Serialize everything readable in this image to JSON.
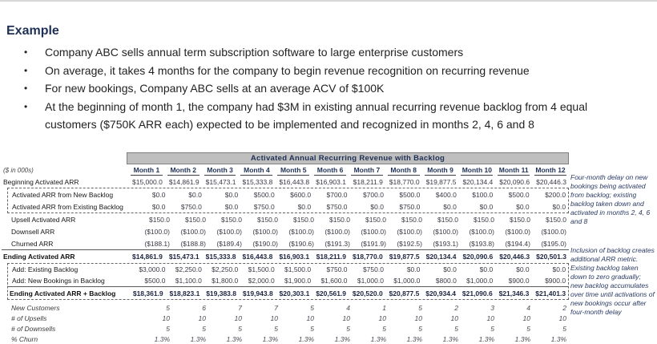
{
  "page": {
    "heading": "Example"
  },
  "bullets": [
    "Company ABC sells annual term subscription software to large enterprise customers",
    "On average, it takes 4 months for the company to begin revenue recognition on recurring revenue",
    "For new bookings, Company ABC sells at an average ACV of $100K",
    "At the beginning of month 1, the company had $3M in existing annual recurring revenue backlog from 4 equal customers ($750K ARR each) expected to be implemented and recognized in months 2, 4, 6 and 8"
  ],
  "table": {
    "units_label": "($ in 000s)",
    "title": "Activated Annual Recurring Revenue with Backlog",
    "columns": [
      "Month 1",
      "Month 2",
      "Month 3",
      "Month 4",
      "Month 5",
      "Month 6",
      "Month 7",
      "Month 8",
      "Month 9",
      "Month 10",
      "Month 11",
      "Month 12"
    ],
    "rows": [
      {
        "label": "Beginning Activated ARR",
        "group": "top",
        "style": "",
        "values": [
          "$15,000.0",
          "$14,861.9",
          "$15,473.1",
          "$15,333.8",
          "$16,443.8",
          "$16,903.1",
          "$18,211.9",
          "$18,770.0",
          "$19,877.5",
          "$20,134.4",
          "$20,090.6",
          "$20,446.3"
        ]
      },
      {
        "label": "Activated ARR from New Backlog",
        "group": "box1",
        "style": "indent",
        "values": [
          "$0.0",
          "$0.0",
          "$0.0",
          "$500.0",
          "$600.0",
          "$700.0",
          "$700.0",
          "$500.0",
          "$400.0",
          "$100.0",
          "$500.0",
          "$200.0"
        ]
      },
      {
        "label": "Activated ARR from Existing Backlog",
        "group": "box1",
        "style": "indent",
        "values": [
          "$0.0",
          "$750.0",
          "$0.0",
          "$750.0",
          "$0.0",
          "$750.0",
          "$0.0",
          "$750.0",
          "$0.0",
          "$0.0",
          "$0.0",
          "$0.0"
        ]
      },
      {
        "label": "Upsell Activated ARR",
        "group": "mid",
        "style": "indent",
        "values": [
          "$150.0",
          "$150.0",
          "$150.0",
          "$150.0",
          "$150.0",
          "$150.0",
          "$150.0",
          "$150.0",
          "$150.0",
          "$150.0",
          "$150.0",
          "$150.0"
        ]
      },
      {
        "label": "Downsell ARR",
        "group": "mid",
        "style": "indent",
        "values": [
          "($100.0)",
          "($100.0)",
          "($100.0)",
          "($100.0)",
          "($100.0)",
          "($100.0)",
          "($100.0)",
          "($100.0)",
          "($100.0)",
          "($100.0)",
          "($100.0)",
          "($100.0)"
        ]
      },
      {
        "label": "Churned ARR",
        "group": "mid",
        "style": "indent",
        "values": [
          "($188.1)",
          "($188.8)",
          "($189.4)",
          "($190.0)",
          "($190.6)",
          "($191.3)",
          "($191.9)",
          "($192.5)",
          "($193.1)",
          "($193.8)",
          "($194.4)",
          "($195.0)"
        ]
      },
      {
        "label": "Ending Activated ARR",
        "group": "mid",
        "style": "total",
        "values": [
          "$14,861.9",
          "$15,473.1",
          "$15,333.8",
          "$16,443.8",
          "$16,903.1",
          "$18,211.9",
          "$18,770.0",
          "$19,877.5",
          "$20,134.4",
          "$20,090.6",
          "$20,446.3",
          "$20,501.3"
        ]
      },
      {
        "label": "Add: Existing Backlog",
        "group": "box2",
        "style": "indent",
        "values": [
          "$3,000.0",
          "$2,250.0",
          "$2,250.0",
          "$1,500.0",
          "$1,500.0",
          "$750.0",
          "$750.0",
          "$0.0",
          "$0.0",
          "$0.0",
          "$0.0",
          "$0.0"
        ]
      },
      {
        "label": "Add: New Bookings in Backlog",
        "group": "box2",
        "style": "indent",
        "values": [
          "$500.0",
          "$1,100.0",
          "$1,800.0",
          "$2,000.0",
          "$1,900.0",
          "$1,600.0",
          "$1,000.0",
          "$1,000.0",
          "$800.0",
          "$1,000.0",
          "$900.0",
          "$900.0"
        ]
      },
      {
        "label": "Ending Activated ARR + Backlog",
        "group": "box2",
        "style": "total",
        "values": [
          "$18,361.9",
          "$18,823.1",
          "$19,383.8",
          "$19,943.8",
          "$20,303.1",
          "$20,561.9",
          "$20,520.0",
          "$20,877.5",
          "$20,934.4",
          "$21,090.6",
          "$21,346.3",
          "$21,401.3"
        ]
      },
      {
        "label": "New Customers",
        "group": "stats",
        "style": "stat",
        "values": [
          "5",
          "6",
          "7",
          "7",
          "5",
          "4",
          "1",
          "5",
          "2",
          "3",
          "4",
          "2"
        ]
      },
      {
        "label": "# of Upsells",
        "group": "stats",
        "style": "stat",
        "values": [
          "10",
          "10",
          "10",
          "10",
          "10",
          "10",
          "10",
          "10",
          "10",
          "10",
          "10",
          "10"
        ]
      },
      {
        "label": "# of Downsells",
        "group": "stats",
        "style": "stat",
        "values": [
          "5",
          "5",
          "5",
          "5",
          "5",
          "5",
          "5",
          "5",
          "5",
          "5",
          "5",
          "5"
        ]
      },
      {
        "label": "% Churn",
        "group": "stats",
        "style": "stat",
        "values": [
          "1.3%",
          "1.3%",
          "1.3%",
          "1.3%",
          "1.3%",
          "1.3%",
          "1.3%",
          "1.3%",
          "1.3%",
          "1.3%",
          "1.3%",
          "1.3%"
        ]
      }
    ]
  },
  "annotations": [
    {
      "text": "Four-month delay on new bookings being activated from backlog; existing backlog taken down and activated in months 2, 4, 6 and 8"
    },
    {
      "text": "Inclusion of backlog creates additional ARR metric. Existing backlog taken down to zero gradually; new backlog accumulates over time until activations of new bookings occur after four-month delay"
    }
  ],
  "colors": {
    "accent_navy": "#1F3055",
    "header_bar_bg": "#BFBFBF",
    "header_bar_border": "#7F7F7F",
    "rule_line": "#595959"
  }
}
